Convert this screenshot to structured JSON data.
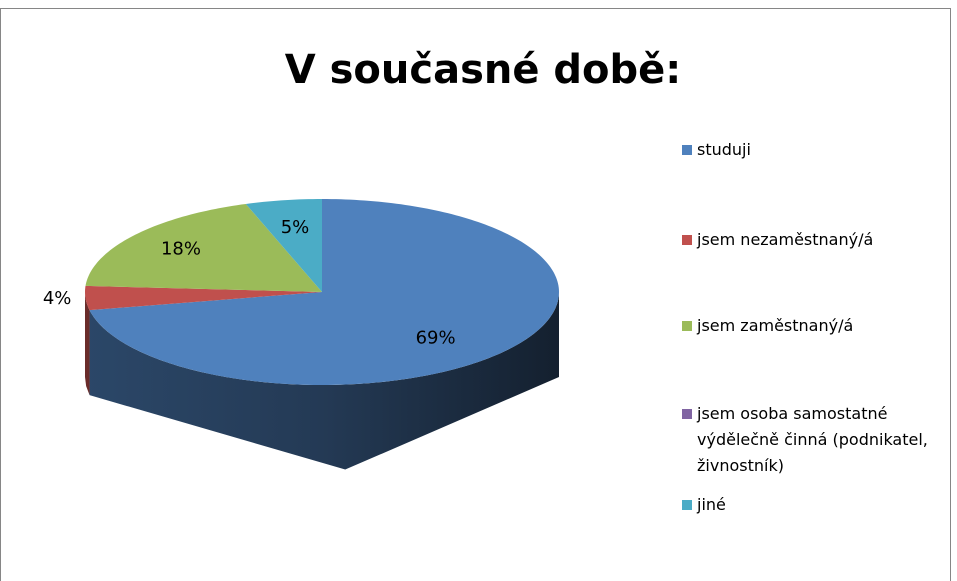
{
  "chart_data": {
    "type": "pie",
    "title": "V současné době:",
    "categories": [
      "studuji",
      "jsem nezaměstnaný/á",
      "jsem zaměstnaný/á",
      "jsem osoba samostatné výdělečně činná (podnikatel, živnostník)",
      "jiné"
    ],
    "values": [
      69,
      4,
      18,
      0,
      5
    ],
    "value_labels": [
      "69%",
      "4%",
      "18%",
      null,
      "5%"
    ],
    "colors": [
      "#4f81bd",
      "#c0504d",
      "#9bbb59",
      "#8064a2",
      "#4bacc6"
    ],
    "legend": "right"
  }
}
